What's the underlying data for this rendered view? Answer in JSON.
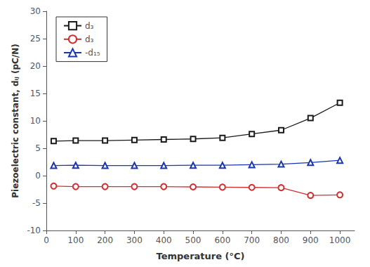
{
  "chart_data": {
    "type": "line",
    "xlabel": "Temperature (°C)",
    "ylabel": "Piezoelectric constant, dᵢⱼ (pC/N)",
    "x": [
      25,
      100,
      200,
      300,
      400,
      500,
      600,
      700,
      800,
      900,
      1000
    ],
    "series": [
      {
        "name": "d₃",
        "color": "#1a1a1a",
        "marker": "square",
        "line_style": "solid",
        "values": [
          6.3,
          6.4,
          6.4,
          6.5,
          6.6,
          6.7,
          6.9,
          7.6,
          8.3,
          10.5,
          13.3
        ]
      },
      {
        "name": "d₃",
        "color": "#d03030",
        "marker": "circle",
        "line_style": "solid",
        "values": [
          -1.9,
          -2.0,
          -2.0,
          -2.0,
          -2.0,
          -2.05,
          -2.1,
          -2.15,
          -2.2,
          -3.6,
          -3.5
        ]
      },
      {
        "name": "-d₁₅",
        "color": "#1a35b0",
        "marker": "triangle",
        "line_style": "solid",
        "values": [
          1.85,
          1.9,
          1.85,
          1.85,
          1.85,
          1.9,
          1.9,
          2.0,
          2.1,
          2.4,
          2.8
        ]
      }
    ],
    "xlim": [
      0,
      1050
    ],
    "xticks": [
      0,
      100,
      200,
      300,
      400,
      500,
      600,
      700,
      800,
      900,
      1000
    ],
    "ylim": [
      -10,
      30
    ],
    "yticks": [
      -10,
      -5,
      0,
      5,
      10,
      15,
      20,
      25,
      30
    ],
    "grid": false,
    "legend": "upper left"
  }
}
